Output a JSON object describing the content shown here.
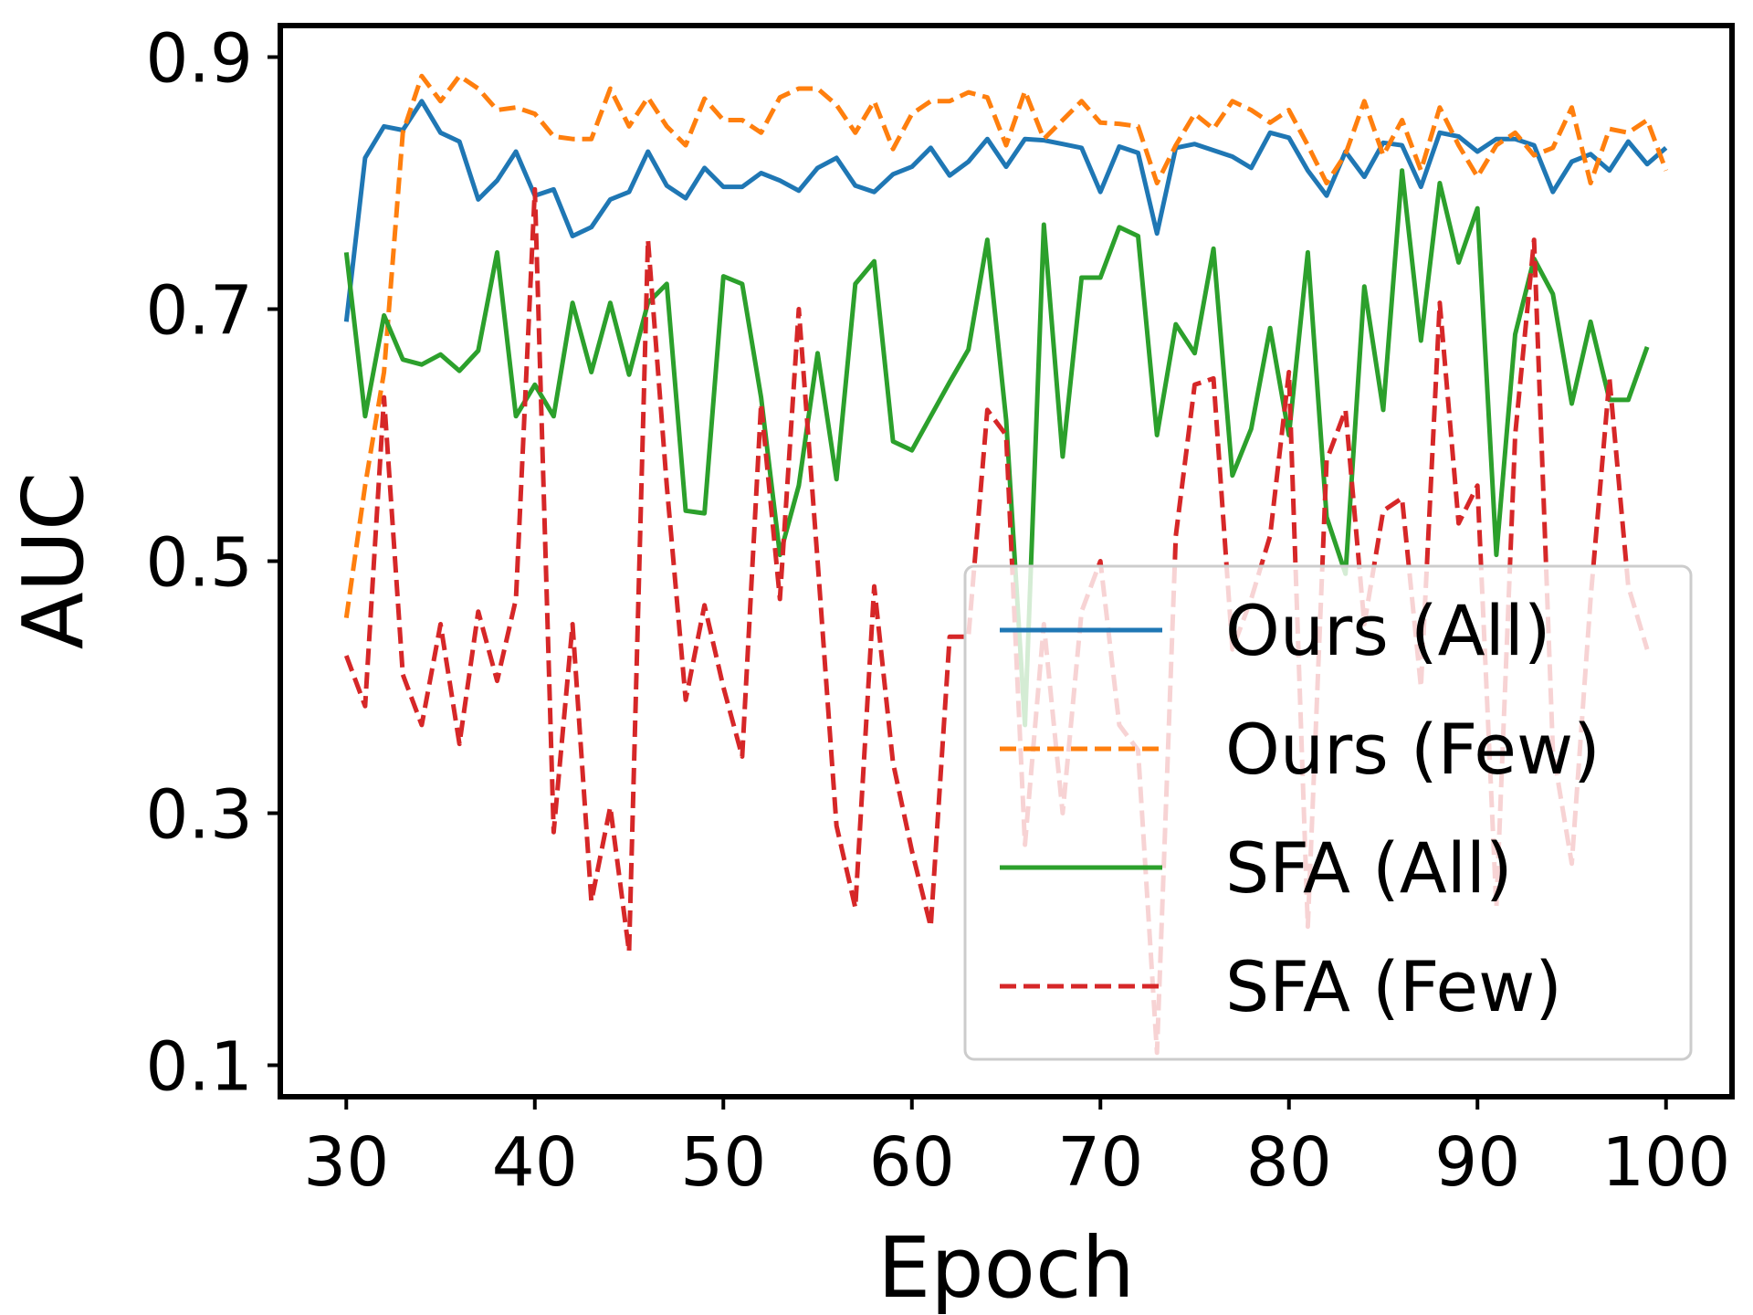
{
  "chart_data": {
    "type": "line",
    "title": "",
    "xlabel": "Epoch",
    "ylabel": "AUC",
    "xlim": [
      26.5,
      103.5
    ],
    "ylim": [
      0.075,
      0.925
    ],
    "xticks": [
      30,
      40,
      50,
      60,
      70,
      80,
      90,
      100
    ],
    "yticks": [
      0.1,
      0.3,
      0.5,
      0.7,
      0.9
    ],
    "xtick_labels": [
      "30",
      "40",
      "50",
      "60",
      "70",
      "80",
      "90",
      "100"
    ],
    "ytick_labels": [
      "0.1",
      "0.3",
      "0.5",
      "0.7",
      "0.9"
    ],
    "grid": false,
    "legend_position": "lower-right",
    "series": [
      {
        "name": "Ours (All)",
        "color": "#1f77b4",
        "style": "solid",
        "x": [
          30,
          31,
          32,
          33,
          34,
          35,
          36,
          37,
          38,
          39,
          40,
          41,
          42,
          43,
          44,
          45,
          46,
          47,
          48,
          49,
          50,
          51,
          52,
          53,
          54,
          55,
          56,
          57,
          58,
          59,
          60,
          61,
          62,
          63,
          64,
          65,
          66,
          67,
          68,
          69,
          70,
          71,
          72,
          73,
          74,
          75,
          76,
          77,
          78,
          79,
          80,
          81,
          82,
          83,
          84,
          85,
          86,
          87,
          88,
          89,
          90,
          91,
          92,
          93,
          94,
          95,
          96,
          97,
          98,
          99,
          100
        ],
        "values": [
          0.69,
          0.82,
          0.845,
          0.842,
          0.865,
          0.84,
          0.833,
          0.787,
          0.802,
          0.825,
          0.79,
          0.795,
          0.758,
          0.765,
          0.787,
          0.793,
          0.825,
          0.798,
          0.788,
          0.812,
          0.797,
          0.797,
          0.808,
          0.802,
          0.794,
          0.812,
          0.82,
          0.798,
          0.793,
          0.807,
          0.813,
          0.828,
          0.806,
          0.817,
          0.835,
          0.813,
          0.835,
          0.834,
          0.831,
          0.828,
          0.793,
          0.829,
          0.824,
          0.76,
          0.828,
          0.831,
          0.826,
          0.821,
          0.812,
          0.84,
          0.836,
          0.81,
          0.79,
          0.825,
          0.805,
          0.832,
          0.83,
          0.797,
          0.84,
          0.837,
          0.825,
          0.835,
          0.835,
          0.83,
          0.793,
          0.817,
          0.823,
          0.81,
          0.833,
          0.815,
          0.828
        ]
      },
      {
        "name": "Ours (Few)",
        "color": "#ff7f0e",
        "style": "dashed",
        "x": [
          30,
          31,
          32,
          33,
          34,
          35,
          36,
          37,
          38,
          39,
          40,
          41,
          42,
          43,
          44,
          45,
          46,
          47,
          48,
          49,
          50,
          51,
          52,
          53,
          54,
          55,
          56,
          57,
          58,
          59,
          60,
          61,
          62,
          63,
          64,
          65,
          66,
          67,
          68,
          69,
          70,
          71,
          72,
          73,
          74,
          75,
          76,
          77,
          78,
          79,
          80,
          81,
          82,
          83,
          84,
          85,
          86,
          87,
          88,
          89,
          90,
          91,
          92,
          93,
          94,
          95,
          96,
          97,
          98,
          99,
          100
        ],
        "values": [
          0.455,
          0.56,
          0.65,
          0.84,
          0.885,
          0.865,
          0.885,
          0.875,
          0.858,
          0.86,
          0.855,
          0.837,
          0.835,
          0.835,
          0.875,
          0.845,
          0.868,
          0.845,
          0.83,
          0.867,
          0.85,
          0.85,
          0.84,
          0.868,
          0.875,
          0.875,
          0.862,
          0.84,
          0.865,
          0.827,
          0.855,
          0.865,
          0.865,
          0.872,
          0.868,
          0.83,
          0.873,
          0.835,
          0.85,
          0.865,
          0.848,
          0.847,
          0.845,
          0.8,
          0.83,
          0.855,
          0.843,
          0.865,
          0.858,
          0.848,
          0.858,
          0.83,
          0.8,
          0.823,
          0.865,
          0.822,
          0.85,
          0.81,
          0.86,
          0.83,
          0.805,
          0.83,
          0.84,
          0.822,
          0.828,
          0.86,
          0.8,
          0.843,
          0.84,
          0.85,
          0.81
        ]
      },
      {
        "name": "SFA (All)",
        "color": "#2ca02c",
        "style": "solid",
        "x": [
          30,
          31,
          32,
          33,
          34,
          35,
          36,
          37,
          38,
          39,
          40,
          41,
          42,
          43,
          44,
          45,
          46,
          47,
          48,
          49,
          50,
          51,
          52,
          53,
          54,
          55,
          56,
          57,
          58,
          59,
          60,
          61,
          62,
          63,
          64,
          65,
          66,
          67,
          68,
          69,
          70,
          71,
          72,
          73,
          74,
          75,
          76,
          77,
          78,
          79,
          80,
          81,
          82,
          83,
          84,
          85,
          86,
          87,
          88,
          89,
          90,
          91,
          92,
          93,
          94,
          95,
          96,
          97,
          98,
          99
        ],
        "values": [
          0.745,
          0.615,
          0.695,
          0.66,
          0.656,
          0.664,
          0.651,
          0.667,
          0.745,
          0.615,
          0.64,
          0.615,
          0.705,
          0.65,
          0.705,
          0.648,
          0.705,
          0.72,
          0.54,
          0.538,
          0.726,
          0.72,
          0.63,
          0.505,
          0.56,
          0.665,
          0.565,
          0.72,
          0.738,
          0.595,
          0.588,
          0.615,
          0.642,
          0.668,
          0.755,
          0.612,
          0.37,
          0.767,
          0.583,
          0.725,
          0.725,
          0.765,
          0.758,
          0.6,
          0.688,
          0.665,
          0.748,
          0.568,
          0.605,
          0.685,
          0.6,
          0.745,
          0.535,
          0.49,
          0.718,
          0.62,
          0.81,
          0.675,
          0.8,
          0.737,
          0.78,
          0.505,
          0.68,
          0.74,
          0.712,
          0.625,
          0.69,
          0.628,
          0.628,
          0.67
        ]
      },
      {
        "name": "SFA (Few)",
        "color": "#d62728",
        "style": "dashed",
        "x": [
          30,
          31,
          32,
          33,
          34,
          35,
          36,
          37,
          38,
          39,
          40,
          41,
          42,
          43,
          44,
          45,
          46,
          47,
          48,
          49,
          50,
          51,
          52,
          53,
          54,
          55,
          56,
          57,
          58,
          59,
          60,
          61,
          62,
          63,
          64,
          65,
          66,
          67,
          68,
          69,
          70,
          71,
          72,
          73,
          74,
          75,
          76,
          77,
          78,
          79,
          80,
          81,
          82,
          83,
          84,
          85,
          86,
          87,
          88,
          89,
          90,
          91,
          92,
          93,
          94,
          95,
          96,
          97,
          98,
          99
        ],
        "values": [
          0.425,
          0.385,
          0.63,
          0.41,
          0.37,
          0.45,
          0.355,
          0.46,
          0.405,
          0.47,
          0.795,
          0.285,
          0.45,
          0.23,
          0.305,
          0.19,
          0.755,
          0.56,
          0.39,
          0.465,
          0.4,
          0.345,
          0.625,
          0.47,
          0.7,
          0.5,
          0.29,
          0.225,
          0.48,
          0.34,
          0.27,
          0.21,
          0.44,
          0.44,
          0.62,
          0.6,
          0.275,
          0.45,
          0.3,
          0.46,
          0.5,
          0.37,
          0.35,
          0.11,
          0.52,
          0.64,
          0.645,
          0.43,
          0.47,
          0.52,
          0.65,
          0.21,
          0.58,
          0.62,
          0.45,
          0.54,
          0.55,
          0.4,
          0.705,
          0.53,
          0.56,
          0.225,
          0.6,
          0.755,
          0.35,
          0.26,
          0.47,
          0.645,
          0.48,
          0.43
        ]
      }
    ]
  }
}
